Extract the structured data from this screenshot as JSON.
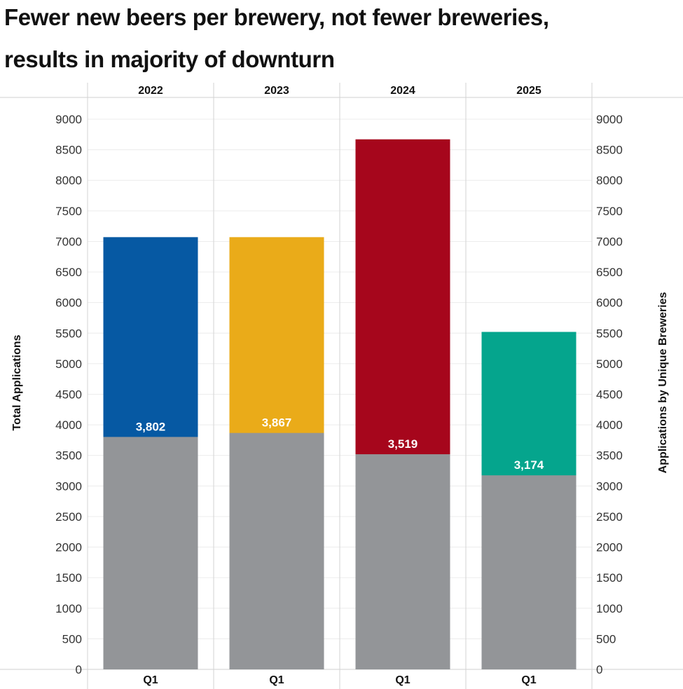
{
  "title_line_1": "Fewer new beers per brewery, not fewer breweries,",
  "title_line_2": "results in majority of downturn",
  "chart_data": {
    "type": "bar",
    "stacked": "overlay",
    "categories": [
      "2022",
      "2023",
      "2024",
      "2025"
    ],
    "sub_categories": [
      "Q1",
      "Q1",
      "Q1",
      "Q1"
    ],
    "series": [
      {
        "name": "Total Applications",
        "values": [
          7070,
          7070,
          8670,
          5520
        ],
        "colors": [
          "#0659a3",
          "#eaab19",
          "#a6061c",
          "#05a58d"
        ]
      },
      {
        "name": "Applications by Unique Breweries",
        "values": [
          3802,
          3867,
          3519,
          3174
        ],
        "color": "#939598",
        "labels": [
          "3,802",
          "3,867",
          "3,519",
          "3,174"
        ]
      }
    ],
    "ylabel_left": "Total  Applications",
    "ylabel_right": "Applications by Unique Breweries",
    "ylim": [
      0,
      9000
    ],
    "yticks": [
      0,
      500,
      1000,
      1500,
      2000,
      2500,
      3000,
      3500,
      4000,
      4500,
      5000,
      5500,
      6000,
      6500,
      7000,
      7500,
      8000,
      8500,
      9000
    ],
    "grid": true
  }
}
